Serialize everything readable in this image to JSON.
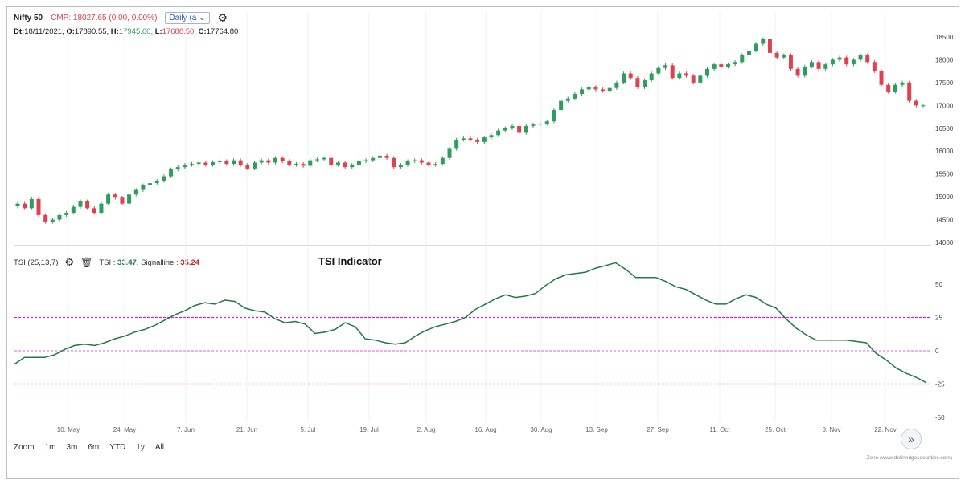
{
  "header": {
    "symbol": "Nifty 50",
    "cmp": "CMP: 18027.65 (0.00, 0.00%)",
    "interval": "Daily (a"
  },
  "ohlc": {
    "dt_label": "Dt:",
    "dt": "18/11/2021,",
    "o_label": "O:",
    "o": "17890.55,",
    "h_label": "H:",
    "h": "17945.60,",
    "l_label": "L:",
    "l": "17688.50,",
    "c_label": "C:",
    "c": "17764.80"
  },
  "indicator": {
    "name": "TSI (25,13,7)",
    "tsi_label": "TSI :",
    "tsi_value": "33.47",
    "sig_label": ", Signalline :",
    "sig_value": "35.24",
    "title": "TSI Indicator"
  },
  "zoom": {
    "label": "Zoom",
    "options": [
      "1m",
      "3m",
      "6m",
      "YTD",
      "1y",
      "All"
    ]
  },
  "credit": "Zone (www.definedgesecurities.com)",
  "colors": {
    "up": "#2e9e5e",
    "down": "#e0414f",
    "tsi_line": "#1f7a45",
    "band": "#e020d0",
    "zero": "#e77fe0"
  },
  "chart_data": [
    {
      "type": "candlestick",
      "title": "Nifty 50",
      "ylim": [
        13900,
        18750
      ],
      "yticks": [
        14000,
        14500,
        15000,
        15500,
        16000,
        16500,
        17000,
        17500,
        18000,
        18500
      ],
      "xticks": [
        "10. May",
        "24. May",
        "7. Jun",
        "21. Jun",
        "5. Jul",
        "19. Jul",
        "2. Aug",
        "16. Aug",
        "30. Aug",
        "13. Sep",
        "27. Sep",
        "11. Oct",
        "25. Oct",
        "8. Nov",
        "22. Nov"
      ],
      "closes": [
        14850,
        14750,
        14950,
        14600,
        14450,
        14500,
        14600,
        14650,
        14780,
        14900,
        14750,
        14650,
        14850,
        15050,
        14980,
        14850,
        15050,
        15150,
        15250,
        15300,
        15350,
        15450,
        15600,
        15650,
        15700,
        15720,
        15750,
        15700,
        15760,
        15780,
        15720,
        15800,
        15700,
        15620,
        15750,
        15800,
        15750,
        15850,
        15780,
        15700,
        15720,
        15680,
        15800,
        15820,
        15850,
        15700,
        15750,
        15650,
        15700,
        15780,
        15800,
        15850,
        15900,
        15850,
        15650,
        15700,
        15780,
        15800,
        15750,
        15700,
        15720,
        15850,
        16050,
        16250,
        16280,
        16250,
        16200,
        16300,
        16350,
        16450,
        16500,
        16550,
        16400,
        16550,
        16580,
        16600,
        16650,
        16900,
        17100,
        17150,
        17250,
        17350,
        17400,
        17350,
        17320,
        17380,
        17500,
        17700,
        17600,
        17400,
        17550,
        17700,
        17820,
        17880,
        17600,
        17700,
        17650,
        17500,
        17650,
        17800,
        17900,
        17850,
        17900,
        17950,
        18100,
        18200,
        18350,
        18450,
        18150,
        18050,
        18100,
        17800,
        17650,
        17850,
        17950,
        17800,
        17900,
        18000,
        18050,
        17900,
        18000,
        18100,
        17950,
        17750,
        17450,
        17300,
        17450,
        17500,
        17100,
        17000,
        17000
      ],
      "x_first": "2021-04-26",
      "x_last": "2021-11-26"
    },
    {
      "type": "line",
      "title": "TSI Indicator",
      "ylim": [
        -50,
        72
      ],
      "yticks": [
        -50,
        -25,
        0,
        25,
        50
      ],
      "reference_lines": [
        25,
        0,
        -25
      ],
      "series": [
        {
          "name": "TSI",
          "values": [
            -10,
            -5,
            -5,
            -5,
            -3,
            1,
            4,
            5,
            4,
            6,
            9,
            11,
            14,
            16,
            19,
            23,
            27,
            30,
            34,
            36,
            35,
            38,
            37,
            32,
            30,
            29,
            24,
            21,
            22,
            20,
            13,
            14,
            16,
            21,
            18,
            9,
            8,
            6,
            5,
            6,
            11,
            15,
            18,
            20,
            22,
            25,
            31,
            35,
            39,
            42,
            40,
            41,
            43,
            49,
            54,
            57,
            58,
            59,
            62,
            64,
            66,
            61,
            55,
            55,
            55,
            52,
            48,
            46,
            42,
            38,
            35,
            35,
            39,
            42,
            40,
            35,
            32,
            24,
            17,
            12,
            8,
            8,
            8,
            8,
            7,
            6,
            -2,
            -7,
            -13,
            -17,
            -20,
            -24
          ]
        }
      ]
    }
  ]
}
